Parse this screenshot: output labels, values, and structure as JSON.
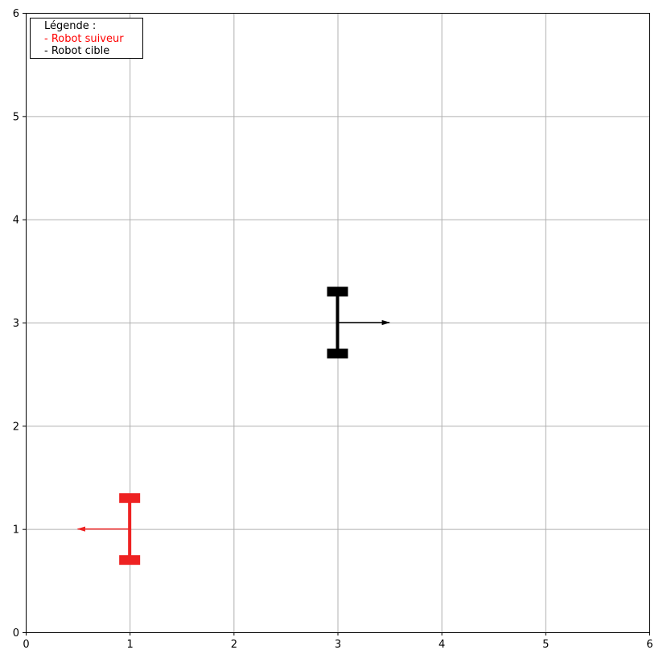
{
  "chart_data": {
    "type": "scatter",
    "title": "",
    "xlabel": "",
    "ylabel": "",
    "xlim": [
      0,
      6
    ],
    "ylim": [
      0,
      6
    ],
    "xticks": [
      0,
      1,
      2,
      3,
      4,
      5,
      6
    ],
    "yticks": [
      0,
      1,
      2,
      3,
      4,
      5,
      6
    ],
    "grid": true,
    "legend": {
      "placement": "top-left",
      "title": "Légende :",
      "entries": [
        {
          "label": "- Robot suiveur",
          "color": "#ff0000"
        },
        {
          "label": "- Robot cible",
          "color": "#000000"
        }
      ]
    },
    "series": [
      {
        "color": "#ee2222",
        "position": [
          1,
          1
        ],
        "direction": [
          -0.5,
          0
        ],
        "wheel_offset": 0.3
      },
      {
        "color": "#000000",
        "position": [
          3,
          3
        ],
        "direction": [
          0.5,
          0
        ],
        "wheel_offset": 0.3
      }
    ]
  }
}
